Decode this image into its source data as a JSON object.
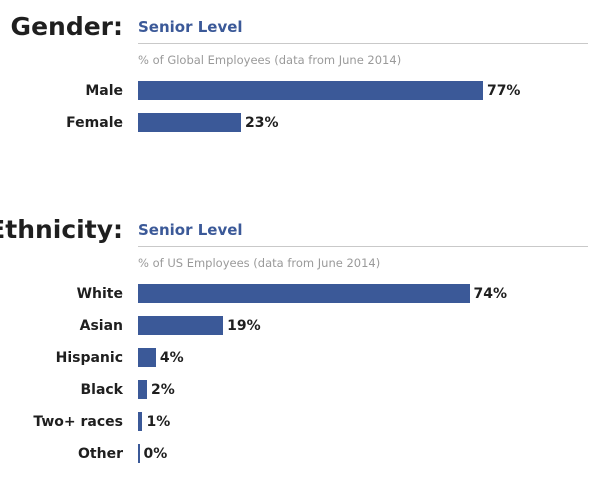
{
  "colors": {
    "bar": "#3b5998",
    "accent": "#3b5998",
    "text": "#1f1f1f",
    "note": "#9a9a9a",
    "rule": "#c9c9c9"
  },
  "chart_data": [
    {
      "type": "bar",
      "orientation": "horizontal",
      "title": "Gender:",
      "subtitle": "Senior Level",
      "note": "% of Global Employees (data from June 2014)",
      "categories": [
        "Male",
        "Female"
      ],
      "values": [
        77,
        23
      ],
      "value_labels": [
        "77%",
        "23%"
      ],
      "xlim": [
        0,
        100
      ],
      "grid": false
    },
    {
      "type": "bar",
      "orientation": "horizontal",
      "title": "Ethnicity:",
      "subtitle": "Senior Level",
      "note": "% of US Employees (data from June 2014)",
      "categories": [
        "White",
        "Asian",
        "Hispanic",
        "Black",
        "Two+ races",
        "Other"
      ],
      "values": [
        74,
        19,
        4,
        2,
        1,
        0
      ],
      "value_labels": [
        "74%",
        "19%",
        "4%",
        "2%",
        "1%",
        "0%"
      ],
      "xlim": [
        0,
        100
      ],
      "grid": false
    }
  ]
}
